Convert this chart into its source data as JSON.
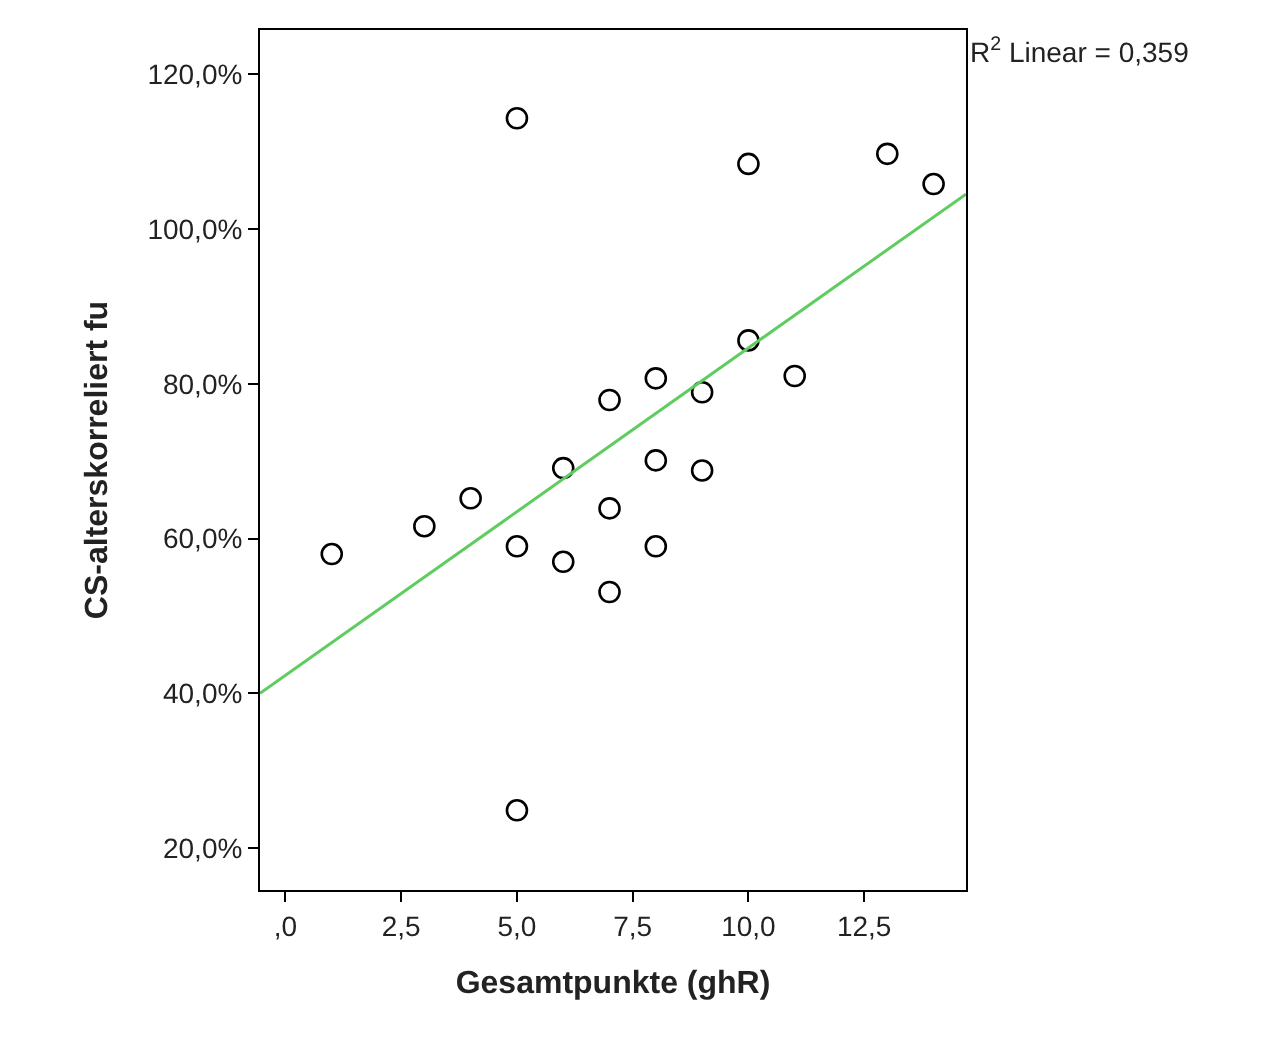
{
  "chart_data": {
    "type": "scatter",
    "xlabel": "Gesamtpunkte (ghR)",
    "ylabel": "CS-alterskorreliert fu",
    "marker": "circle",
    "xlim": [
      -0.55,
      14.7
    ],
    "ylim": [
      14.6,
      125.7
    ],
    "xticks": [
      {
        "value": 0,
        "label": ",0"
      },
      {
        "value": 2.5,
        "label": "2,5"
      },
      {
        "value": 5,
        "label": "5,0"
      },
      {
        "value": 7.5,
        "label": "7,5"
      },
      {
        "value": 10,
        "label": "10,0"
      },
      {
        "value": 12.5,
        "label": "12,5"
      }
    ],
    "yticks": [
      {
        "value": 20,
        "label": "20,0%"
      },
      {
        "value": 40,
        "label": "40,0%"
      },
      {
        "value": 60,
        "label": "60,0%"
      },
      {
        "value": 80,
        "label": "80,0%"
      },
      {
        "value": 100,
        "label": "100,0%"
      },
      {
        "value": 120,
        "label": "120,0%"
      }
    ],
    "annotations": [
      "R$^{2}$ Linear = 0,359"
    ],
    "series": [
      {
        "color": "#000000",
        "x": [
          1,
          3,
          4,
          5,
          5,
          5,
          6,
          6,
          7,
          7,
          7,
          8,
          8,
          8,
          9,
          9,
          10,
          10,
          11,
          13,
          14
        ],
        "values": [
          58.0,
          61.6,
          65.2,
          114.3,
          59.0,
          24.9,
          69.1,
          57.0,
          77.9,
          63.9,
          53.1,
          80.7,
          70.1,
          59.0,
          78.9,
          68.8,
          108.4,
          85.6,
          81.0,
          109.7,
          105.8
        ]
      },
      {
        "type": "line",
        "marker": "none",
        "color": "#5fcc5f",
        "x": [
          -0.55,
          14.7
        ],
        "values": [
          40.0,
          104.5
        ]
      }
    ]
  }
}
